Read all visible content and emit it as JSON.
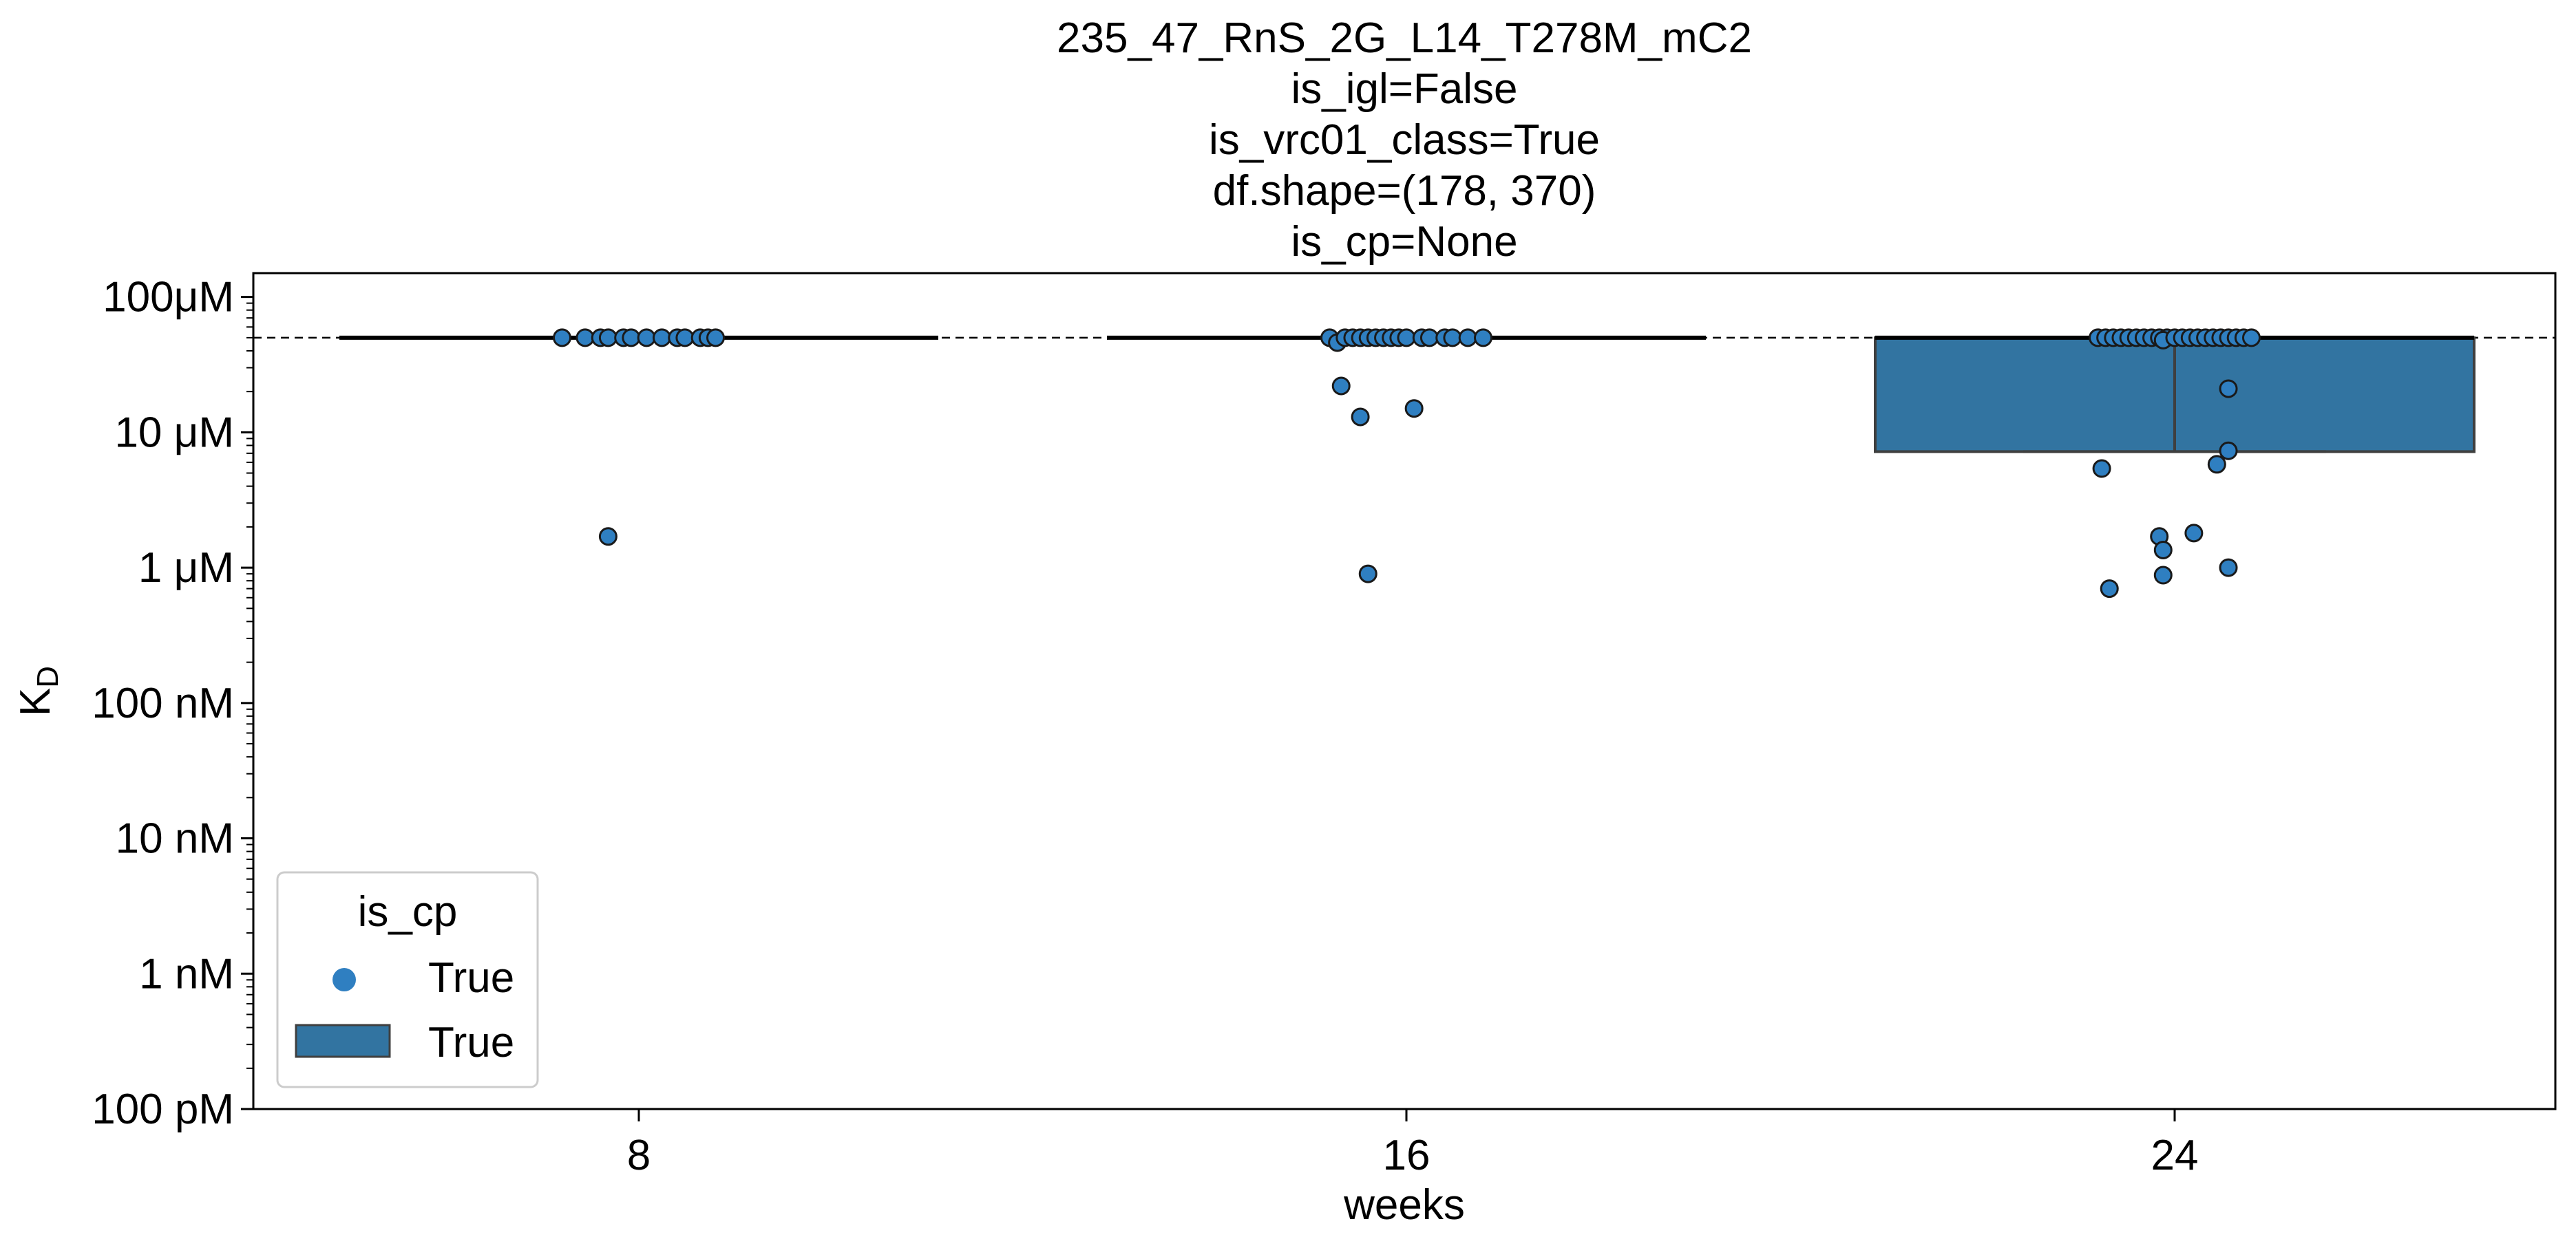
{
  "chart_data": {
    "type": "scatter",
    "title_lines": [
      "235_47_RnS_2G_L14_T278M_mC2",
      "is_igl=False",
      "is_vrc01_class=True",
      "df.shape=(178, 370)",
      "is_cp=None"
    ],
    "xlabel": "weeks",
    "ylabel_main": "K",
    "ylabel_sub": "D",
    "yscale": "log",
    "ylim_molar": [
      1e-10,
      0.00015
    ],
    "yticks": [
      {
        "value": 0.0001,
        "label": "100μM"
      },
      {
        "value": 1e-05,
        "label": "10 μM"
      },
      {
        "value": 1e-06,
        "label": "1 μM"
      },
      {
        "value": 1e-07,
        "label": "100 nM"
      },
      {
        "value": 1e-08,
        "label": "10 nM"
      },
      {
        "value": 1e-09,
        "label": "1 nM"
      },
      {
        "value": 1e-10,
        "label": "100 pM"
      }
    ],
    "categories": [
      "8",
      "16",
      "24"
    ],
    "threshold_molar": 5e-05,
    "point_color": "#2f7fc1",
    "box_color": "#3274a1",
    "groups": [
      {
        "category": "8",
        "median": 5e-05,
        "q1": 5e-05,
        "q3": 5e-05,
        "whisker_low": 5e-05,
        "whisker_high": 5e-05,
        "points": [
          {
            "dx": -0.1,
            "y": 5e-05
          },
          {
            "dx": -0.07,
            "y": 5e-05
          },
          {
            "dx": -0.05,
            "y": 5e-05
          },
          {
            "dx": -0.04,
            "y": 5e-05
          },
          {
            "dx": -0.02,
            "y": 5e-05
          },
          {
            "dx": -0.01,
            "y": 5e-05
          },
          {
            "dx": 0.01,
            "y": 5e-05
          },
          {
            "dx": 0.03,
            "y": 5e-05
          },
          {
            "dx": 0.05,
            "y": 5e-05
          },
          {
            "dx": 0.06,
            "y": 5e-05
          },
          {
            "dx": 0.08,
            "y": 5e-05
          },
          {
            "dx": 0.09,
            "y": 5e-05
          },
          {
            "dx": 0.1,
            "y": 5e-05
          },
          {
            "dx": -0.04,
            "y": 1.7e-06
          }
        ]
      },
      {
        "category": "16",
        "median": 5e-05,
        "q1": 5e-05,
        "q3": 5e-05,
        "whisker_low": 5e-05,
        "whisker_high": 5e-05,
        "points": [
          {
            "dx": -0.1,
            "y": 5e-05
          },
          {
            "dx": -0.09,
            "y": 4.6e-05
          },
          {
            "dx": -0.08,
            "y": 5e-05
          },
          {
            "dx": -0.07,
            "y": 5e-05
          },
          {
            "dx": -0.06,
            "y": 5e-05
          },
          {
            "dx": -0.05,
            "y": 5e-05
          },
          {
            "dx": -0.04,
            "y": 5e-05
          },
          {
            "dx": -0.03,
            "y": 5e-05
          },
          {
            "dx": -0.02,
            "y": 5e-05
          },
          {
            "dx": -0.01,
            "y": 5e-05
          },
          {
            "dx": 0.0,
            "y": 5e-05
          },
          {
            "dx": 0.02,
            "y": 5e-05
          },
          {
            "dx": 0.03,
            "y": 5e-05
          },
          {
            "dx": 0.05,
            "y": 5e-05
          },
          {
            "dx": 0.06,
            "y": 5e-05
          },
          {
            "dx": 0.08,
            "y": 5e-05
          },
          {
            "dx": 0.1,
            "y": 5e-05
          },
          {
            "dx": -0.085,
            "y": 2.2e-05
          },
          {
            "dx": -0.06,
            "y": 1.3e-05
          },
          {
            "dx": 0.01,
            "y": 1.5e-05
          },
          {
            "dx": -0.05,
            "y": 9e-07
          }
        ]
      },
      {
        "category": "24",
        "median": 5e-05,
        "q1": 7.2e-06,
        "q3": 5e-05,
        "whisker_low": 7.2e-06,
        "whisker_high": 5e-05,
        "points": [
          {
            "dx": -0.1,
            "y": 5e-05
          },
          {
            "dx": -0.09,
            "y": 5e-05
          },
          {
            "dx": -0.08,
            "y": 5e-05
          },
          {
            "dx": -0.07,
            "y": 5e-05
          },
          {
            "dx": -0.06,
            "y": 5e-05
          },
          {
            "dx": -0.05,
            "y": 5e-05
          },
          {
            "dx": -0.04,
            "y": 5e-05
          },
          {
            "dx": -0.03,
            "y": 5e-05
          },
          {
            "dx": -0.02,
            "y": 5e-05
          },
          {
            "dx": -0.01,
            "y": 5e-05
          },
          {
            "dx": -0.015,
            "y": 4.8e-05
          },
          {
            "dx": 0.0,
            "y": 5e-05
          },
          {
            "dx": 0.01,
            "y": 5e-05
          },
          {
            "dx": 0.02,
            "y": 5e-05
          },
          {
            "dx": 0.03,
            "y": 5e-05
          },
          {
            "dx": 0.04,
            "y": 5e-05
          },
          {
            "dx": 0.05,
            "y": 5e-05
          },
          {
            "dx": 0.06,
            "y": 5e-05
          },
          {
            "dx": 0.07,
            "y": 5e-05
          },
          {
            "dx": 0.08,
            "y": 5e-05
          },
          {
            "dx": 0.09,
            "y": 5e-05
          },
          {
            "dx": 0.1,
            "y": 5e-05
          },
          {
            "dx": 0.07,
            "y": 2.1e-05
          },
          {
            "dx": 0.07,
            "y": 7.3e-06
          },
          {
            "dx": 0.055,
            "y": 5.8e-06
          },
          {
            "dx": -0.095,
            "y": 5.4e-06
          },
          {
            "dx": -0.02,
            "y": 1.7e-06
          },
          {
            "dx": 0.025,
            "y": 1.8e-06
          },
          {
            "dx": -0.015,
            "y": 1.35e-06
          },
          {
            "dx": 0.07,
            "y": 1e-06
          },
          {
            "dx": -0.015,
            "y": 8.8e-07
          },
          {
            "dx": -0.085,
            "y": 7e-07
          }
        ]
      }
    ],
    "legend": {
      "placement": "lower-left",
      "title": "is_cp",
      "entries": [
        {
          "kind": "marker",
          "label": "True"
        },
        {
          "kind": "box",
          "label": "True"
        }
      ]
    }
  }
}
